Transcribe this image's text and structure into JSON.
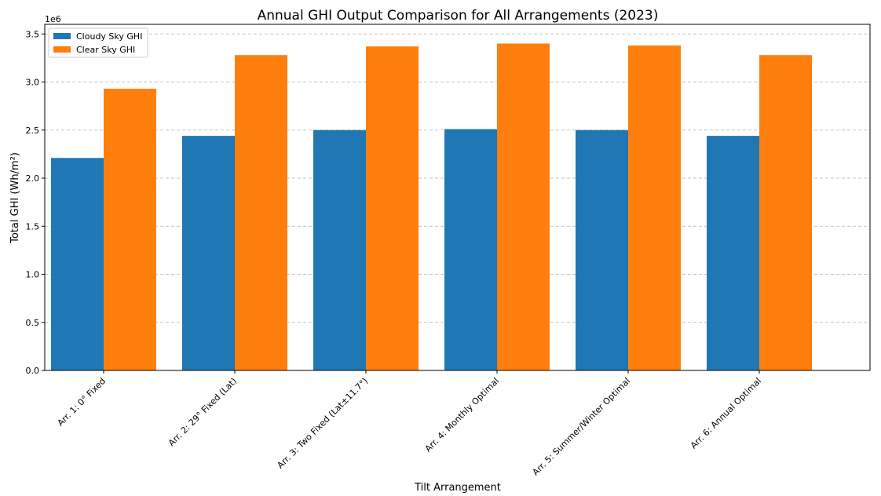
{
  "chart_data": {
    "type": "bar",
    "title": "Annual GHI Output Comparison for All Arrangements (2023)",
    "xlabel": "Tilt Arrangement",
    "ylabel": "Total GHI (Wh/m²)",
    "y_offset_label": "1e6",
    "y_scale_factor": 1000000,
    "ylim": [
      0,
      3.6
    ],
    "yticks": [
      0.0,
      0.5,
      1.0,
      1.5,
      2.0,
      2.5,
      3.0,
      3.5
    ],
    "ytick_labels": [
      "0.0",
      "0.5",
      "1.0",
      "1.5",
      "2.0",
      "2.5",
      "3.0",
      "3.5"
    ],
    "grid": "y-dashed",
    "legend_position": "top-left",
    "categories": [
      "Arr. 1: 0° Fixed",
      "Arr. 2: 29° Fixed (Lat)",
      "Arr. 3: Two Fixed (Lat±11.7°)",
      "Arr. 4: Monthly Optimal",
      "Arr. 5: Summer/Winter Optimal",
      "Arr. 6: Annual Optimal"
    ],
    "series": [
      {
        "name": "Cloudy Sky GHI",
        "color": "#1f77b4",
        "values": [
          2.21,
          2.44,
          2.5,
          2.51,
          2.5,
          2.44
        ]
      },
      {
        "name": "Clear Sky GHI",
        "color": "#ff7f0e",
        "values": [
          2.93,
          3.28,
          3.37,
          3.4,
          3.38,
          3.28
        ]
      }
    ]
  }
}
